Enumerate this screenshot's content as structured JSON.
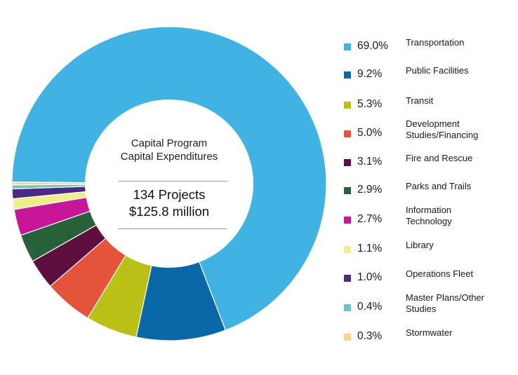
{
  "chart_data": {
    "type": "pie",
    "variant": "donut",
    "title": "Capital Program Capital Expenditures",
    "center_text": {
      "title_lines": [
        "Capital Program",
        "Capital Expenditures"
      ],
      "stat_lines": [
        "134 Projects",
        "$125.8 million"
      ]
    },
    "start_direction": "left (9 o'clock)",
    "direction": "clockwise",
    "legend_placement": "right",
    "slices": [
      {
        "label": "Transportation",
        "label_lines": [
          "Transportation"
        ],
        "value": 69.0,
        "display": "69.0%",
        "color": "#41B3E3"
      },
      {
        "label": "Public Facilities",
        "label_lines": [
          "Public Facilities"
        ],
        "value": 9.2,
        "display": "9.2%",
        "color": "#0B68A8"
      },
      {
        "label": "Transit",
        "label_lines": [
          "Transit"
        ],
        "value": 5.3,
        "display": "5.3%",
        "color": "#B9C016"
      },
      {
        "label": "Development Studies/Financing",
        "label_lines": [
          "Development",
          "Studies/Financing"
        ],
        "value": 5.0,
        "display": "5.0%",
        "color": "#E5533B"
      },
      {
        "label": "Fire and Rescue",
        "label_lines": [
          "Fire and Rescue"
        ],
        "value": 3.1,
        "display": "3.1%",
        "color": "#5E0F3E"
      },
      {
        "label": "Parks and Trails",
        "label_lines": [
          "Parks and Trails"
        ],
        "value": 2.9,
        "display": "2.9%",
        "color": "#27613A"
      },
      {
        "label": "Information Technology",
        "label_lines": [
          "Information",
          "Technology"
        ],
        "value": 2.7,
        "display": "2.7%",
        "color": "#C8169A"
      },
      {
        "label": "Library",
        "label_lines": [
          "Library"
        ],
        "value": 1.1,
        "display": "1.1%",
        "color": "#EEEE8C"
      },
      {
        "label": "Operations Fleet",
        "label_lines": [
          "Operations Fleet"
        ],
        "value": 1.0,
        "display": "1.0%",
        "color": "#4A2A82"
      },
      {
        "label": "Master Plans/Other Studies",
        "label_lines": [
          "Master Plans/Other",
          "Studies"
        ],
        "value": 0.4,
        "display": "0.4%",
        "color": "#6EC3C3"
      },
      {
        "label": "Stormwater",
        "label_lines": [
          "Stormwater"
        ],
        "value": 0.3,
        "display": "0.3%",
        "color": "#F8D38A"
      }
    ]
  }
}
